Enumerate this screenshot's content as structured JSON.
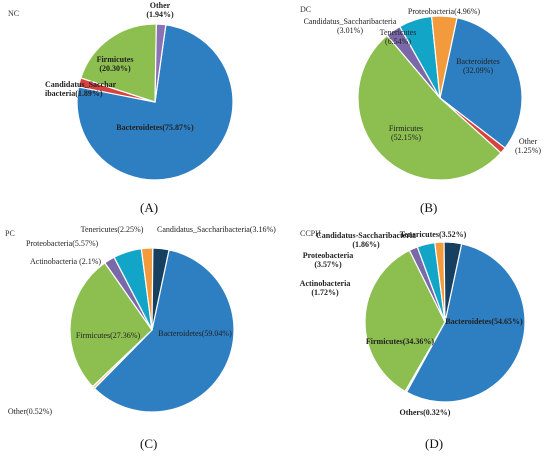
{
  "colors": {
    "bacteroidetes": "#2E7EC2",
    "firmicutes": "#8CBE50",
    "other": "#F2CC9A",
    "proteobacteria": "#F39A3C",
    "tenericutes": "#13A5C8",
    "saccharibacteria": "#8A72B4",
    "candidatus_red": "#D9413E",
    "actinobacteria": "#7B68A8",
    "dark": "#173F60"
  },
  "chart_data": [
    {
      "type": "pie",
      "tag": "NC",
      "caption": "(A)",
      "slices": [
        {
          "name": "Bacteroidetes",
          "value": 75.87,
          "color": "#2E7EC2",
          "label_lines": [
            "Bacteroidetes(75.87%)"
          ]
        },
        {
          "name": "Candidatus_Saccharibacteria",
          "value": 1.89,
          "color": "#D9413E",
          "label_lines": [
            "Candidatus_Sacchar",
            "ibacteria(1.89%)"
          ]
        },
        {
          "name": "Firmicutes",
          "value": 20.3,
          "color": "#8CBE50",
          "label_lines": [
            "Firmicutes",
            "(20.30%)"
          ]
        },
        {
          "name": "Other",
          "value": 1.94,
          "color": "#8A72B4",
          "label_lines": [
            "Other",
            "(1.94%)"
          ]
        }
      ]
    },
    {
      "type": "pie",
      "tag": "DC",
      "caption": "(B)",
      "slices": [
        {
          "name": "Bacteroidetes",
          "value": 32.09,
          "color": "#2E7EC2",
          "label_lines": [
            "Bacteroidetes",
            "(32.09%)"
          ]
        },
        {
          "name": "Other",
          "value": 1.25,
          "color": "#D9413E",
          "label_lines": [
            "Other",
            "(1.25%)"
          ]
        },
        {
          "name": "Firmicutes",
          "value": 52.15,
          "color": "#8CBE50",
          "label_lines": [
            "Firmicutes",
            "(52.15%)"
          ]
        },
        {
          "name": "Candidatus_Saccharibacteria",
          "value": 3.01,
          "color": "#7B68A8",
          "label_lines": [
            "Candidatus_Saccharibacteria",
            "(3.01%)"
          ]
        },
        {
          "name": "Tenericutes",
          "value": 6.54,
          "color": "#13A5C8",
          "label_lines": [
            "Tenericutes",
            "(6.54%)"
          ]
        },
        {
          "name": "Proteobacteria",
          "value": 4.96,
          "color": "#F39A3C",
          "label_lines": [
            "Proteobacteria(4.96%)"
          ]
        }
      ]
    },
    {
      "type": "pie",
      "tag": "PC",
      "caption": "(C)",
      "slices": [
        {
          "name": "Bacteroidetes",
          "value": 59.04,
          "color": "#2E7EC2",
          "label_lines": [
            "Bacteroidetes(59.04%)"
          ]
        },
        {
          "name": "Other",
          "value": 0.52,
          "color": "#F2CC9A",
          "label_lines": [
            "Other(0.52%)"
          ]
        },
        {
          "name": "Firmicutes",
          "value": 27.36,
          "color": "#8CBE50",
          "label_lines": [
            "Firmicutes(27.36%)"
          ]
        },
        {
          "name": "Actinobacteria",
          "value": 2.1,
          "color": "#7B68A8",
          "label_lines": [
            "Actinobacteria (2.1%)"
          ]
        },
        {
          "name": "Proteobacteria",
          "value": 5.57,
          "color": "#13A5C8",
          "label_lines": [
            "Proteobacteria(5.57%)"
          ]
        },
        {
          "name": "Tenericutes",
          "value": 2.25,
          "color": "#F39A3C",
          "label_lines": [
            "Tenericutes(2.25%)"
          ]
        },
        {
          "name": "Candidatus_Saccharibacteria",
          "value": 3.16,
          "color": "#173F60",
          "label_lines": [
            "Candidatus_Saccharibacteria(3.16%)"
          ]
        }
      ]
    },
    {
      "type": "pie",
      "tag": "CCPH",
      "caption": "(D)",
      "slices": [
        {
          "name": "Bacteroidetes",
          "value": 54.65,
          "color": "#2E7EC2",
          "label_lines": [
            "Bacteroidetes(54.65%)"
          ]
        },
        {
          "name": "Others",
          "value": 0.32,
          "color": "#F2CC9A",
          "label_lines": [
            "Others(0.32%)"
          ]
        },
        {
          "name": "Firmicutes",
          "value": 34.36,
          "color": "#8CBE50",
          "label_lines": [
            "Firmicutes(34.36%)"
          ]
        },
        {
          "name": "Actinobacteria",
          "value": 1.72,
          "color": "#7B68A8",
          "label_lines": [
            "Actinobacteria",
            "(1.72%)"
          ]
        },
        {
          "name": "Proteobacteria",
          "value": 3.57,
          "color": "#13A5C8",
          "label_lines": [
            "Proteobacteria",
            "(3.57%)"
          ]
        },
        {
          "name": "Candidatus-Saccharibacteria",
          "value": 1.86,
          "color": "#F39A3C",
          "label_lines": [
            "Candidatus-Saccharibacteria",
            "(1.86%)"
          ]
        },
        {
          "name": "Tenericutes",
          "value": 3.52,
          "color": "#173F60",
          "label_lines": [
            "Tenericutes(3.52%)"
          ]
        }
      ]
    }
  ]
}
